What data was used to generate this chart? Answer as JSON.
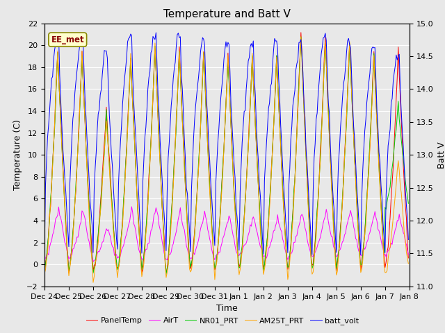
{
  "title": "Temperature and Batt V",
  "ylabel_left": "Temperature (C)",
  "ylabel_right": "Batt V",
  "xlabel": "Time",
  "ylim_left": [
    -2,
    22
  ],
  "ylim_right": [
    11.0,
    15.0
  ],
  "yticks_left": [
    -2,
    0,
    2,
    4,
    6,
    8,
    10,
    12,
    14,
    16,
    18,
    20,
    22
  ],
  "yticks_right": [
    11.0,
    11.5,
    12.0,
    12.5,
    13.0,
    13.5,
    14.0,
    14.5,
    15.0
  ],
  "xtick_labels": [
    "Dec 24",
    "Dec 25",
    "Dec 26",
    "Dec 27",
    "Dec 28",
    "Dec 29",
    "Dec 30",
    "Dec 31",
    "Jan 1",
    "Jan 2",
    "Jan 3",
    "Jan 4",
    "Jan 5",
    "Jan 6",
    "Jan 7",
    "Jan 8"
  ],
  "colors": {
    "PanelTemp": "#ff0000",
    "AirT": "#ff00ff",
    "NR01_PRT": "#00cc00",
    "AM25T_PRT": "#ffa500",
    "batt_volt": "#0000ff"
  },
  "annotation_text": "EE_met",
  "annotation_fg": "#880000",
  "annotation_bg": "#ffffcc",
  "annotation_edge": "#888800",
  "bg_color": "#e8e8e8",
  "plot_bg_color": "#e8e8e8",
  "grid_color": "#ffffff",
  "title_fontsize": 11,
  "label_fontsize": 9,
  "tick_fontsize": 8,
  "legend_fontsize": 8
}
